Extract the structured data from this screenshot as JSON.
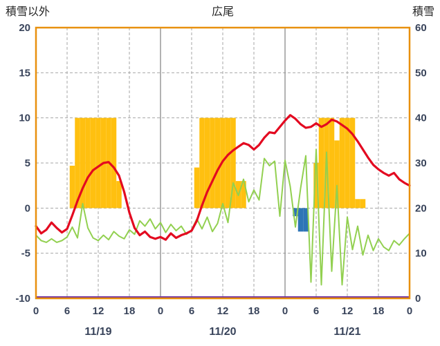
{
  "colors": {
    "frame": "#E8900E",
    "grid_dashed": "#A6A6A6",
    "grid_solid": "#7F7F7F",
    "tick_text": "#38435A",
    "title_text": "#262626",
    "yellow_bars": "#FFC010",
    "blue_bars": "#2E75B6",
    "red_line": "#E30920",
    "green_line": "#92D050",
    "purple_line": "#7030A0",
    "background": "#FFFFFF"
  },
  "chart_data": {
    "type": "mixed",
    "title": "広尾",
    "left_axis": {
      "label": "積雪以外",
      "min": -10,
      "max": 20,
      "ticks": [
        20,
        15,
        10,
        5,
        0,
        -5,
        -10
      ]
    },
    "right_axis": {
      "label": "積雪",
      "min": 0,
      "max": 60,
      "ticks": [
        60,
        50,
        40,
        30,
        20,
        10,
        0
      ]
    },
    "x_axis": {
      "hours_total": 72,
      "tick_interval": 6,
      "tick_labels": [
        "0",
        "6",
        "12",
        "18",
        "0",
        "6",
        "12",
        "18",
        "0",
        "6",
        "12",
        "18",
        "0"
      ],
      "day_labels": [
        "11/19",
        "11/20",
        "11/21"
      ],
      "day_boundaries_hours": [
        24,
        48
      ],
      "grid": "dashed at 6h steps, solid at day boundaries"
    },
    "series": [
      {
        "id": "yellow",
        "name": "yellow-bars",
        "type": "bar",
        "axis": "left",
        "color": "#FFC010",
        "bar_width_hours": 1,
        "points": [
          [
            7,
            4.7
          ],
          [
            8,
            10
          ],
          [
            9,
            10
          ],
          [
            10,
            10
          ],
          [
            11,
            10
          ],
          [
            12,
            10
          ],
          [
            13,
            10
          ],
          [
            14,
            10
          ],
          [
            15,
            10
          ],
          [
            16,
            3
          ],
          [
            31,
            4.5
          ],
          [
            32,
            10
          ],
          [
            33,
            10
          ],
          [
            34,
            10
          ],
          [
            35,
            10
          ],
          [
            36,
            10
          ],
          [
            37,
            10
          ],
          [
            38,
            10
          ],
          [
            39,
            3
          ],
          [
            40,
            3
          ],
          [
            54,
            5
          ],
          [
            55,
            10
          ],
          [
            56,
            10
          ],
          [
            57,
            10
          ],
          [
            58,
            7.5
          ],
          [
            59,
            10
          ],
          [
            60,
            10
          ],
          [
            61,
            10
          ],
          [
            62,
            1
          ],
          [
            63,
            1
          ]
        ]
      },
      {
        "id": "blue",
        "name": "blue-bars",
        "type": "bar",
        "axis": "left",
        "color": "#2E75B6",
        "bar_width_hours": 1,
        "points": [
          [
            50,
            -0.9
          ],
          [
            51,
            -2.6
          ],
          [
            52,
            -2.6
          ]
        ]
      },
      {
        "id": "green",
        "name": "green-line",
        "type": "line",
        "axis": "left",
        "color": "#92D050",
        "width": 2,
        "values": [
          -3.0,
          -3.6,
          -3.8,
          -3.4,
          -3.8,
          -3.6,
          -3.2,
          -2.1,
          -3.3,
          0.5,
          -2.2,
          -3.3,
          -3.6,
          -3.0,
          -3.5,
          -2.6,
          -3.1,
          -3.4,
          -2.4,
          -2.9,
          -1.4,
          -2.0,
          -1.2,
          -2.3,
          -1.6,
          -2.7,
          -1.8,
          -2.5,
          -2.0,
          -2.9,
          -2.4,
          -1.2,
          -2.3,
          -1.0,
          -2.6,
          -1.7,
          0.5,
          -1.6,
          2.8,
          1.4,
          3.2,
          0.7,
          2.0,
          0.9,
          5.5,
          4.7,
          5.2,
          -0.9,
          5.3,
          2.4,
          -2.1,
          2.2,
          5.8,
          -8.2,
          6.5,
          -8.5,
          6.2,
          -7.0,
          2.5,
          -8.5,
          -1.0,
          -4.6,
          -2.0,
          -5.2,
          -3.0,
          -4.7,
          -3.4,
          -4.3,
          -4.7,
          -3.6,
          -4.1,
          -3.4,
          -2.8
        ]
      },
      {
        "id": "red",
        "name": "red-line",
        "type": "line",
        "axis": "left",
        "color": "#E30920",
        "width": 3.2,
        "values": [
          -2.0,
          -2.8,
          -2.4,
          -1.6,
          -2.2,
          -2.7,
          -2.3,
          -0.8,
          0.8,
          2.2,
          3.4,
          4.2,
          4.6,
          5.0,
          5.1,
          4.5,
          3.6,
          1.8,
          -0.5,
          -2.2,
          -3.0,
          -2.6,
          -3.2,
          -3.4,
          -3.2,
          -3.5,
          -2.8,
          -3.3,
          -3.0,
          -2.8,
          -2.5,
          -1.4,
          0.3,
          1.8,
          3.0,
          4.2,
          5.2,
          5.9,
          6.4,
          6.8,
          7.2,
          7.0,
          6.5,
          7.0,
          7.8,
          8.4,
          8.3,
          9.0,
          9.7,
          10.3,
          9.9,
          9.3,
          8.9,
          9.0,
          9.4,
          9.0,
          9.3,
          9.8,
          9.6,
          9.2,
          8.8,
          8.2,
          7.4,
          6.5,
          5.6,
          4.8,
          4.3,
          3.9,
          3.6,
          3.9,
          3.2,
          2.8,
          2.5
        ]
      },
      {
        "id": "purple",
        "name": "purple-line",
        "type": "hline",
        "axis": "right",
        "color": "#7030A0",
        "width": 3,
        "value": 0
      }
    ]
  }
}
